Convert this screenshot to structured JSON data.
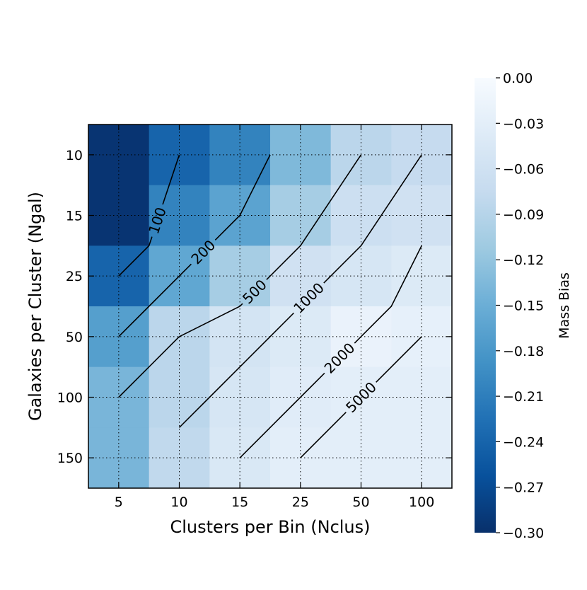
{
  "chart_data": {
    "type": "heatmap",
    "xlabel": "Clusters per Bin (Nclus)",
    "ylabel": "Galaxies per Cluster (Ngal)",
    "x_categories": [
      "5",
      "10",
      "15",
      "25",
      "50",
      "100"
    ],
    "y_categories": [
      "10",
      "15",
      "25",
      "50",
      "100",
      "150"
    ],
    "values": [
      [
        -0.295,
        -0.24,
        -0.205,
        -0.135,
        -0.085,
        -0.075
      ],
      [
        -0.295,
        -0.205,
        -0.165,
        -0.105,
        -0.065,
        -0.06
      ],
      [
        -0.24,
        -0.16,
        -0.105,
        -0.06,
        -0.05,
        -0.04
      ],
      [
        -0.17,
        -0.085,
        -0.055,
        -0.04,
        -0.02,
        -0.025
      ],
      [
        -0.14,
        -0.085,
        -0.05,
        -0.035,
        -0.03,
        -0.03
      ],
      [
        -0.14,
        -0.08,
        -0.045,
        -0.03,
        -0.03,
        -0.03
      ]
    ],
    "colorbar": {
      "label": "Mass Bias",
      "range": [
        -0.3,
        0.0
      ],
      "ticks": [
        "0.00",
        "−0.03",
        "−0.06",
        "−0.09",
        "−0.12",
        "−0.15",
        "−0.18",
        "−0.21",
        "−0.24",
        "−0.27",
        "−0.30"
      ],
      "colormap": "Blues_r"
    },
    "contours": [
      {
        "level": "100",
        "points": [
          [
            0,
            2
          ],
          [
            0.5,
            1.5
          ],
          [
            1,
            0
          ]
        ]
      },
      {
        "level": "200",
        "points": [
          [
            0,
            3
          ],
          [
            0.5,
            2.5
          ],
          [
            1,
            2
          ],
          [
            1.5,
            1.5
          ],
          [
            2,
            1
          ],
          [
            2.5,
            0
          ]
        ]
      },
      {
        "level": "500",
        "points": [
          [
            0,
            4
          ],
          [
            0.5,
            3.5
          ],
          [
            1,
            3
          ],
          [
            1.5,
            2.75
          ],
          [
            2,
            2.5
          ],
          [
            2.5,
            2
          ],
          [
            3,
            1.5
          ],
          [
            4,
            0
          ]
        ]
      },
      {
        "level": "1000",
        "points": [
          [
            1,
            4.5
          ],
          [
            1.5,
            4
          ],
          [
            2,
            3.5
          ],
          [
            2.5,
            3
          ],
          [
            3,
            2.5
          ],
          [
            4,
            1.5
          ],
          [
            5,
            0
          ]
        ]
      },
      {
        "level": "2000",
        "points": [
          [
            2,
            5
          ],
          [
            2.5,
            4.5
          ],
          [
            3,
            4
          ],
          [
            3.5,
            3.5
          ],
          [
            4,
            3
          ],
          [
            4.5,
            2.5
          ],
          [
            5,
            1.5
          ]
        ]
      },
      {
        "level": "5000",
        "points": [
          [
            3,
            5
          ],
          [
            3.5,
            4.5
          ],
          [
            4,
            4
          ],
          [
            4.5,
            3.5
          ],
          [
            5,
            3
          ]
        ]
      }
    ],
    "grid": true
  }
}
